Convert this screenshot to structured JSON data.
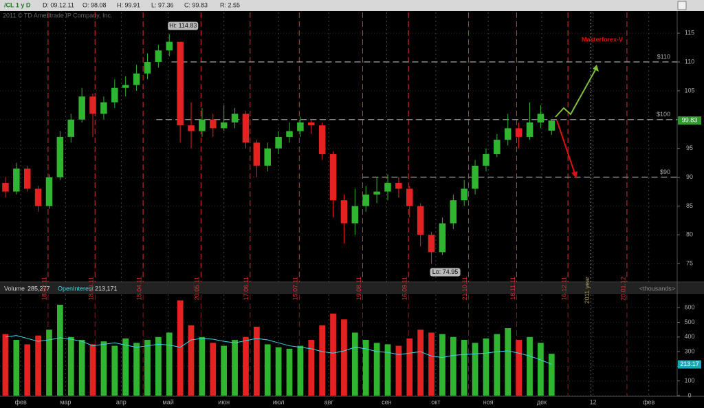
{
  "header": {
    "symbol": "/CL 1 y D",
    "date": "D: 09.12.11",
    "open": "O: 98.08",
    "high": "H: 99.91",
    "low": "L: 97.36",
    "close": "C: 99.83",
    "range": "R: 2.55",
    "copyright": "2011 © TD Ameritrade IP Company, Inc.",
    "watermark": "Masterforex-V"
  },
  "volume_header": {
    "volume": "Volume",
    "volume_value": "285,277",
    "open_interest": "OpenInterest",
    "open_interest_value": "213,171",
    "units": "<thousands>"
  },
  "chart_data": [
    {
      "type": "candlestick",
      "x": [
        0,
        1,
        2,
        3,
        4,
        5,
        6,
        7,
        8,
        9,
        10,
        11,
        12,
        13,
        14,
        15,
        16,
        17,
        18,
        19,
        20,
        21,
        22,
        23,
        24,
        25,
        26,
        27,
        28,
        29,
        30,
        31,
        32,
        33,
        34,
        35,
        36,
        37,
        38,
        39,
        40,
        41,
        42,
        43,
        44,
        45,
        46,
        47,
        48,
        49,
        50
      ],
      "open": [
        89,
        87.5,
        91.5,
        88,
        85,
        90,
        97,
        100,
        104,
        101,
        103,
        105.5,
        106,
        108,
        110,
        112,
        113.5,
        99,
        98,
        100,
        98.5,
        99.5,
        101,
        96,
        92,
        95,
        97,
        98,
        99.5,
        99,
        94,
        86,
        82,
        85,
        87,
        87.5,
        89,
        88,
        85,
        80,
        77,
        82,
        86,
        88,
        92,
        94,
        96.5,
        98.5,
        97,
        99.5,
        98.08
      ],
      "high": [
        90,
        92.5,
        92,
        88.5,
        90.5,
        98,
        101,
        105.5,
        104.5,
        104,
        107,
        107.5,
        109.5,
        111.5,
        113,
        114.83,
        113.5,
        103,
        102,
        101,
        102.5,
        102,
        101.5,
        96.5,
        96,
        98,
        99.5,
        100.5,
        100,
        99.5,
        94.5,
        87,
        88,
        88.5,
        90,
        90.5,
        90,
        88.5,
        85.5,
        80.5,
        83,
        87,
        89.5,
        93,
        95,
        97.5,
        101,
        99.5,
        103,
        102.5,
        99.91
      ],
      "low": [
        86.5,
        87,
        87.5,
        84,
        84.5,
        89.5,
        96,
        99.5,
        97,
        100,
        102,
        104,
        105,
        107,
        109,
        111,
        96,
        95,
        97,
        97,
        98,
        98.5,
        95,
        90,
        91,
        94,
        96,
        97,
        97.5,
        93,
        83,
        78.5,
        80,
        84,
        85.5,
        86,
        86.5,
        83,
        78,
        74.95,
        76.5,
        81,
        85,
        87,
        91,
        93.5,
        95.5,
        95,
        96.5,
        98.5,
        97.36
      ],
      "close": [
        87.5,
        91.5,
        88,
        85,
        90,
        97,
        100,
        104,
        101,
        103,
        105.5,
        106,
        108,
        110,
        112,
        113.5,
        99,
        98,
        100,
        98.5,
        99.5,
        101,
        96,
        92,
        95,
        97,
        98,
        99.5,
        99,
        94,
        86,
        82,
        85,
        87,
        87.5,
        89,
        88,
        85,
        80,
        77,
        82,
        86,
        88,
        92,
        94,
        96.5,
        98.5,
        97,
        99.5,
        101,
        99.83
      ],
      "up_color": "#2fb52f",
      "down_color": "#e52222",
      "xlim": [
        -0.5,
        61.5
      ],
      "ylim": [
        71.8,
        118.6
      ],
      "yticks": [
        75,
        80,
        85,
        90,
        95,
        100,
        105,
        110,
        115
      ],
      "markers": [
        {
          "value": 3.9,
          "label": "18.02.11",
          "color": "#e03030"
        },
        {
          "value": 8.2,
          "label": "18.03.11",
          "color": "#e03030"
        },
        {
          "value": 12.6,
          "label": "15.04.11",
          "color": "#e03030"
        },
        {
          "value": 17.9,
          "label": "20.05.11",
          "color": "#e03030"
        },
        {
          "value": 22.4,
          "label": "17.06.11",
          "color": "#e03030"
        },
        {
          "value": 26.9,
          "label": "15.07.11",
          "color": "#e03030"
        },
        {
          "value": 32.7,
          "label": "19.08.11",
          "color": "#e03030"
        },
        {
          "value": 36.9,
          "label": "16.09.11",
          "color": "#e03030"
        },
        {
          "value": 42.4,
          "label": "21.10.11",
          "color": "#e03030"
        },
        {
          "value": 46.8,
          "label": "18.11.11",
          "color": "#e03030"
        },
        {
          "value": 51.5,
          "label": "16.12.11",
          "color": "#e03030"
        },
        {
          "value": 53.6,
          "label": "2011 year",
          "color": "#a89a60"
        },
        {
          "value": 56.9,
          "label": "20.01.12",
          "color": "#e03030"
        }
      ],
      "levels": [
        {
          "value": 110,
          "label": "$110",
          "from": 15.2
        },
        {
          "value": 100,
          "label": "$100",
          "from": 13.8
        },
        {
          "value": 90,
          "label": "$90",
          "from": 32.7
        }
      ],
      "annotations": [
        {
          "text": "Hi: 114.83",
          "x": 15,
          "y": 114.83
        },
        {
          "text": "Lo: 74.95",
          "x": 39,
          "y": 74.95
        }
      ]
    },
    {
      "type": "bar",
      "series": [
        {
          "name": "Volume",
          "values": [
            420,
            380,
            350,
            410,
            450,
            620,
            400,
            380,
            350,
            370,
            340,
            390,
            360,
            380,
            400,
            430,
            650,
            480,
            400,
            360,
            340,
            380,
            400,
            470,
            350,
            330,
            320,
            340,
            380,
            480,
            560,
            520,
            430,
            380,
            360,
            350,
            340,
            390,
            450,
            430,
            420,
            400,
            380,
            360,
            390,
            420,
            460,
            380,
            400,
            360,
            285.277
          ]
        },
        {
          "name": "OpenInterest",
          "color": "#3cd6e6",
          "values": [
            400,
            410,
            390,
            370,
            380,
            395,
            385,
            370,
            340,
            350,
            360,
            345,
            330,
            340,
            350,
            345,
            330,
            380,
            390,
            385,
            370,
            360,
            375,
            390,
            380,
            360,
            340,
            330,
            320,
            300,
            290,
            305,
            330,
            320,
            300,
            295,
            280,
            290,
            300,
            270,
            260,
            275,
            280,
            285,
            290,
            300,
            305,
            290,
            270,
            245,
            213.17
          ]
        }
      ],
      "ylim": [
        0,
        690
      ],
      "yticks": [
        0,
        100,
        200,
        300,
        400,
        500,
        600
      ],
      "xticks": [
        {
          "value": 1.4,
          "label": "фев"
        },
        {
          "value": 5.5,
          "label": "мар"
        },
        {
          "value": 10.6,
          "label": "апр"
        },
        {
          "value": 14.9,
          "label": "май"
        },
        {
          "value": 20,
          "label": "июн"
        },
        {
          "value": 25,
          "label": "июл"
        },
        {
          "value": 29.6,
          "label": "авг"
        },
        {
          "value": 34.9,
          "label": "сен"
        },
        {
          "value": 39.4,
          "label": "окт"
        },
        {
          "value": 44.2,
          "label": "ноя"
        },
        {
          "value": 49.1,
          "label": "дек"
        },
        {
          "value": 53.8,
          "label": "12"
        },
        {
          "value": 58.9,
          "label": "фев"
        }
      ]
    }
  ]
}
